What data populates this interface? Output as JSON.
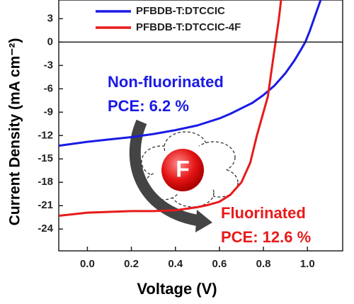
{
  "chart_data": {
    "type": "line",
    "xlabel": "Voltage (V)",
    "ylabel": "Current Density (mA cm⁻²)",
    "xlim": [
      -0.13,
      1.16
    ],
    "ylim": [
      -26.8,
      5.4
    ],
    "xticks": [
      {
        "value": 0,
        "label": "0.0"
      },
      0.2,
      0.4,
      0.6,
      0.8,
      {
        "value": 1,
        "label": "1.0"
      }
    ],
    "yticks": [
      3,
      0,
      -3,
      -6,
      -9,
      -12,
      -15,
      -18,
      -21,
      -24
    ],
    "legend": "top",
    "series": [
      {
        "name": "PFBDB-T:DTCCIC",
        "color": "#1a1ae6",
        "x": [
          -0.13,
          0.0,
          0.1,
          0.2,
          0.3,
          0.4,
          0.5,
          0.6,
          0.65,
          0.7,
          0.75,
          0.8,
          0.85,
          0.9,
          0.94,
          0.97,
          0.99,
          1.01,
          1.03,
          1.06
        ],
        "values": [
          -13.3,
          -12.8,
          -12.5,
          -12.2,
          -11.8,
          -11.3,
          -10.7,
          -9.8,
          -9.2,
          -8.5,
          -7.8,
          -6.8,
          -5.6,
          -4.0,
          -2.4,
          -1.0,
          0,
          1.4,
          3.0,
          5.4
        ]
      },
      {
        "name": "PFBDB-T:DTCCIC-4F",
        "color": "#e81a1a",
        "x": [
          -0.13,
          0.0,
          0.1,
          0.2,
          0.3,
          0.4,
          0.5,
          0.55,
          0.6,
          0.65,
          0.7,
          0.74,
          0.77,
          0.8,
          0.82,
          0.84,
          0.855,
          0.87,
          0.88
        ],
        "values": [
          -22.3,
          -21.9,
          -21.8,
          -21.7,
          -21.7,
          -21.6,
          -21.2,
          -20.9,
          -20.5,
          -19.6,
          -18.0,
          -15.5,
          -12.0,
          -9.0,
          -7.0,
          -3.0,
          0,
          3.0,
          5.4
        ]
      }
    ],
    "annotations": [
      {
        "text": "Non-fluorinated",
        "color": "#1a1ae6"
      },
      {
        "text": "PCE: 6.2 %",
        "color": "#1a1ae6"
      },
      {
        "text": "Fluorinated",
        "color": "#e81a1a"
      },
      {
        "text": "PCE: 12.6 %",
        "color": "#e81a1a"
      },
      {
        "text": "F",
        "color": "#ffffff"
      }
    ]
  }
}
